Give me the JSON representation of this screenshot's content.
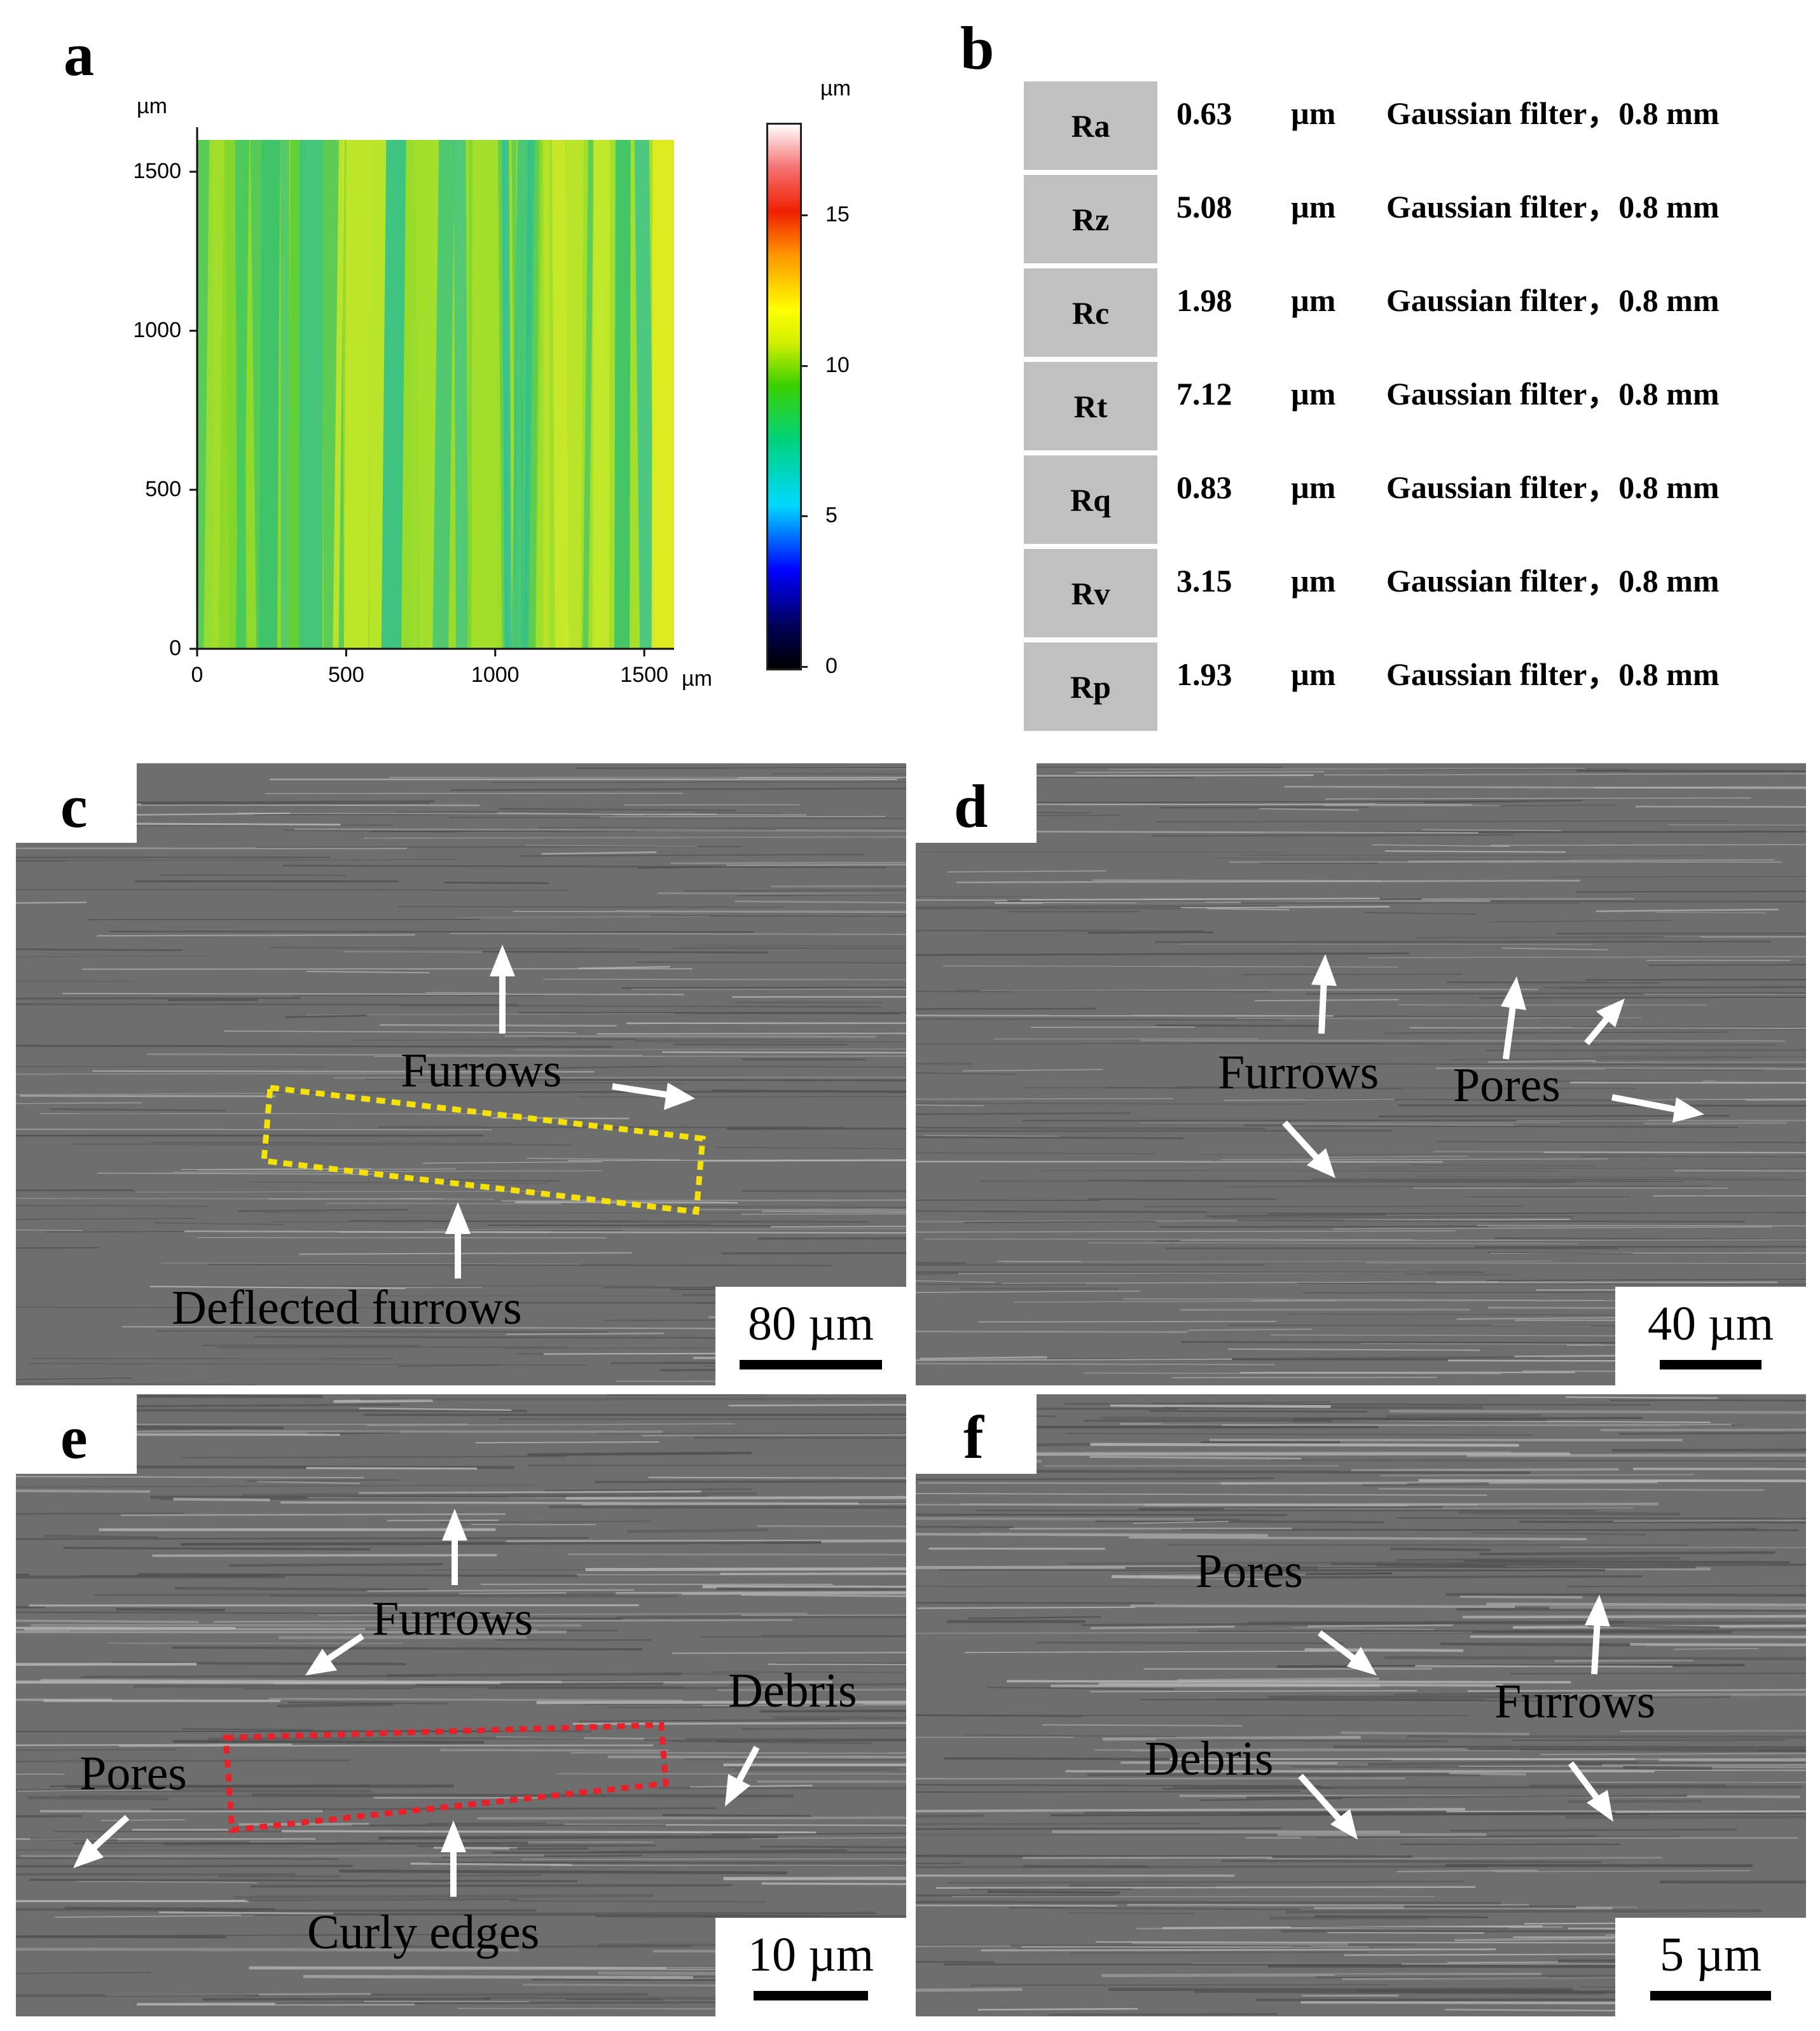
{
  "panels": {
    "a": {
      "letter": "a",
      "y_unit": "µm",
      "x_unit": "µm",
      "colorbar_unit": "µm",
      "y_ticks": [
        "0",
        "500",
        "1000",
        "1500"
      ],
      "x_ticks": [
        "0",
        "500",
        "1000",
        "1500"
      ],
      "colorbar_ticks": [
        "0",
        "5",
        "10",
        "15"
      ],
      "colorbar_range": [
        0,
        18
      ],
      "plot_range": [
        0,
        1600
      ]
    },
    "b": {
      "letter": "b",
      "rows": [
        {
          "param": "Ra",
          "value": "0.63",
          "unit": "µm",
          "filter": "Gaussian filter，0.8 mm"
        },
        {
          "param": "Rz",
          "value": "5.08",
          "unit": "µm",
          "filter": "Gaussian filter，0.8 mm"
        },
        {
          "param": "Rc",
          "value": "1.98",
          "unit": "µm",
          "filter": "Gaussian filter，0.8 mm"
        },
        {
          "param": "Rt",
          "value": "7.12",
          "unit": "µm",
          "filter": "Gaussian filter，0.8 mm"
        },
        {
          "param": "Rq",
          "value": "0.83",
          "unit": "µm",
          "filter": "Gaussian filter，0.8 mm"
        },
        {
          "param": "Rv",
          "value": "3.15",
          "unit": "µm",
          "filter": "Gaussian filter，0.8 mm"
        },
        {
          "param": "Rp",
          "value": "1.93",
          "unit": "µm",
          "filter": "Gaussian filter，0.8 mm"
        }
      ]
    },
    "c": {
      "letter": "c",
      "scale": "80 µm",
      "labels": {
        "furrows": "Furrows",
        "deflected": "Deflected furrows"
      },
      "box_color": "#f4e10a"
    },
    "d": {
      "letter": "d",
      "scale": "40 µm",
      "labels": {
        "furrows": "Furrows",
        "pores": "Pores"
      }
    },
    "e": {
      "letter": "e",
      "scale": "10 µm",
      "labels": {
        "furrows": "Furrows",
        "debris": "Debris",
        "pores": "Pores",
        "curly": "Curly edges"
      },
      "box_color": "#e8202a"
    },
    "f": {
      "letter": "f",
      "scale": "5 µm",
      "labels": {
        "pores": "Pores",
        "furrows": "Furrows",
        "debris": "Debris"
      }
    }
  },
  "colors": {
    "sem_background": "#6e6e6e",
    "arrow": "#ffffff",
    "table_cell": "#c0c0c0"
  }
}
